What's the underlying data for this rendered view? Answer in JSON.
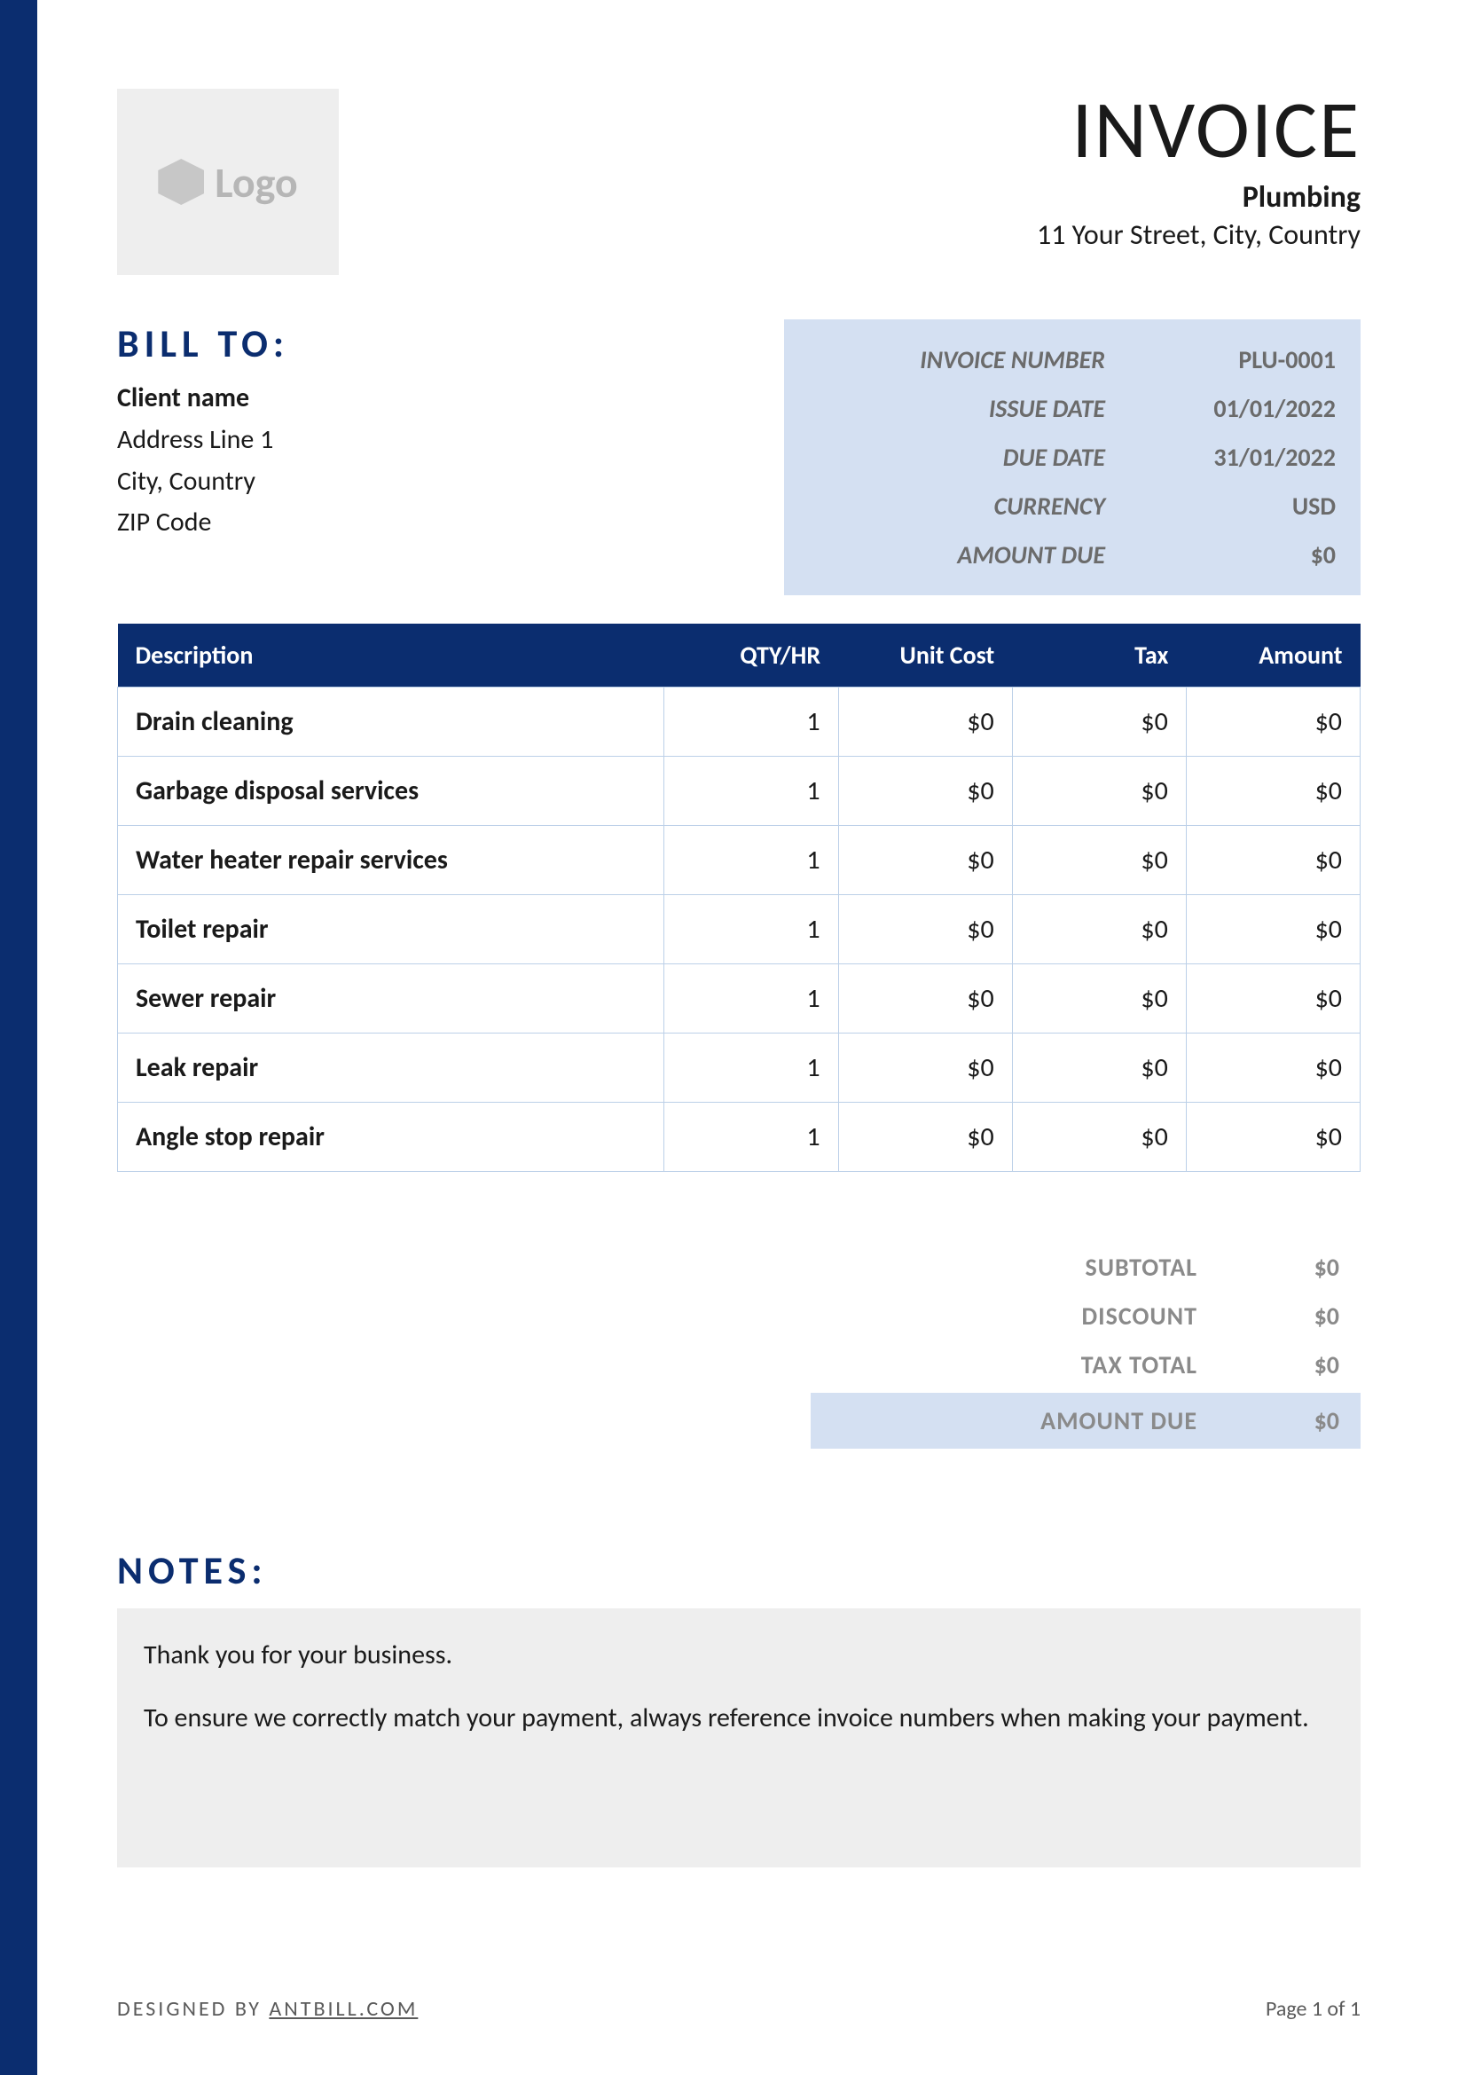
{
  "colors": {
    "accent": "#0b2d6f",
    "meta_bg": "#d4e0f2",
    "logo_bg": "#eeeeee",
    "logo_fg": "#b6b6b6",
    "muted_text": "#6b6b6b",
    "totals_text": "#8a8a8a",
    "cell_border": "#bcd0e8",
    "notes_bg": "#eeeeee"
  },
  "header": {
    "logo_text": "Logo",
    "invoice_title": "INVOICE",
    "company_name": "Plumbing",
    "company_address": "11 Your Street, City, Country"
  },
  "bill_to": {
    "title": "BILL TO:",
    "client_name": "Client name",
    "address_line_1": "Address Line 1",
    "city_country": "City, Country",
    "zip": "ZIP Code"
  },
  "meta": {
    "rows": [
      {
        "label": "INVOICE NUMBER",
        "value": "PLU-0001"
      },
      {
        "label": "ISSUE DATE",
        "value": "01/01/2022"
      },
      {
        "label": "DUE DATE",
        "value": "31/01/2022"
      },
      {
        "label": "CURRENCY",
        "value": "USD"
      },
      {
        "label": "AMOUNT DUE",
        "value": "$0"
      }
    ]
  },
  "table": {
    "columns": [
      "Description",
      "QTY/HR",
      "Unit Cost",
      "Tax",
      "Amount"
    ],
    "rows": [
      {
        "description": "Drain cleaning",
        "qty": "1",
        "unit_cost": "$0",
        "tax": "$0",
        "amount": "$0"
      },
      {
        "description": "Garbage disposal services",
        "qty": "1",
        "unit_cost": "$0",
        "tax": "$0",
        "amount": "$0"
      },
      {
        "description": "Water heater repair services",
        "qty": "1",
        "unit_cost": "$0",
        "tax": "$0",
        "amount": "$0"
      },
      {
        "description": "Toilet repair",
        "qty": "1",
        "unit_cost": "$0",
        "tax": "$0",
        "amount": "$0"
      },
      {
        "description": "Sewer repair",
        "qty": "1",
        "unit_cost": "$0",
        "tax": "$0",
        "amount": "$0"
      },
      {
        "description": "Leak repair",
        "qty": "1",
        "unit_cost": "$0",
        "tax": "$0",
        "amount": "$0"
      },
      {
        "description": "Angle stop repair",
        "qty": "1",
        "unit_cost": "$0",
        "tax": "$0",
        "amount": "$0"
      }
    ]
  },
  "totals": {
    "rows": [
      {
        "label": "SUBTOTAL",
        "value": "$0"
      },
      {
        "label": "DISCOUNT",
        "value": "$0"
      },
      {
        "label": "TAX TOTAL",
        "value": "$0"
      }
    ],
    "amount_due_label": "AMOUNT DUE",
    "amount_due_value": "$0"
  },
  "notes": {
    "title": "NOTES:",
    "line1": "Thank you for your business.",
    "line2": "To ensure we correctly match your payment, always reference invoice numbers when making your payment."
  },
  "footer": {
    "designed_prefix": "DESIGNED BY ",
    "designed_link": "ANTBILL.COM",
    "page": "Page 1 of 1"
  }
}
